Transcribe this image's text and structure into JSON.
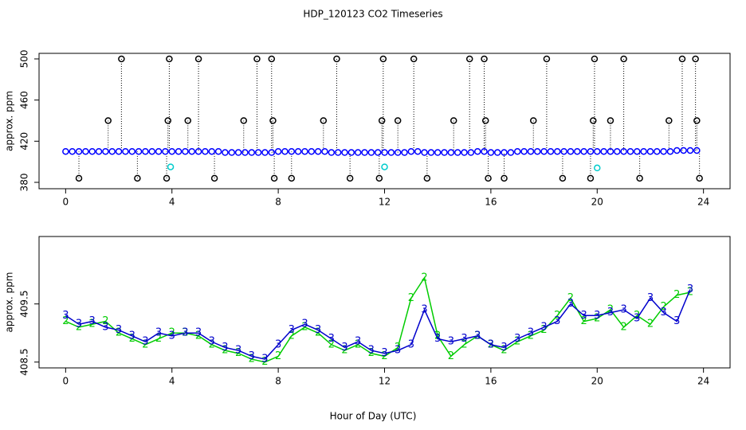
{
  "chart_data": [
    {
      "type": "scatter",
      "title": "HDP_120123  CO2 Timeseries",
      "ylabel": "approx. ppm",
      "xlim": [
        -1,
        25
      ],
      "ylim": [
        373.8,
        505.4
      ],
      "xticks": [
        0,
        4,
        8,
        12,
        16,
        20,
        24
      ],
      "yticks": [
        380,
        420,
        460,
        500
      ],
      "series": [
        {
          "color": "#000000",
          "stems": true,
          "x": [
            0.5,
            1.6,
            2.1,
            2.7,
            3.8,
            3.85,
            3.9,
            4.6,
            5.0,
            5.6,
            6.7,
            7.2,
            7.75,
            7.8,
            7.85,
            8.5,
            9.7,
            10.2,
            10.7,
            11.8,
            11.9,
            11.95,
            12.5,
            13.1,
            13.6,
            14.6,
            15.2,
            15.75,
            15.8,
            15.9,
            16.5,
            17.6,
            18.1,
            18.7,
            19.75,
            19.85,
            19.9,
            20.5,
            21.0,
            21.6,
            22.7,
            23.2,
            23.7,
            23.75,
            23.85
          ],
          "values": [
            384,
            440,
            500,
            384,
            384,
            440,
            500,
            440,
            500,
            384,
            440,
            500,
            500,
            440,
            384,
            384,
            440,
            500,
            384,
            384,
            440,
            500,
            440,
            500,
            384,
            440,
            500,
            500,
            440,
            384,
            384,
            440,
            500,
            384,
            384,
            440,
            500,
            440,
            500,
            384,
            440,
            500,
            500,
            440,
            384
          ]
        },
        {
          "color": "#0000ff",
          "x": [
            0,
            0.25,
            0.5,
            0.75,
            1,
            1.25,
            1.5,
            1.75,
            2,
            2.25,
            2.5,
            2.75,
            3,
            3.25,
            3.5,
            3.75,
            4,
            4.25,
            4.5,
            4.75,
            5,
            5.25,
            5.5,
            5.75,
            6,
            6.25,
            6.5,
            6.75,
            7,
            7.25,
            7.5,
            7.75,
            8,
            8.25,
            8.5,
            8.75,
            9,
            9.25,
            9.5,
            9.75,
            10,
            10.25,
            10.5,
            10.75,
            11,
            11.25,
            11.5,
            11.75,
            12,
            12.25,
            12.5,
            12.75,
            13,
            13.25,
            13.5,
            13.75,
            14,
            14.25,
            14.5,
            14.75,
            15,
            15.25,
            15.5,
            15.75,
            16,
            16.25,
            16.5,
            16.75,
            17,
            17.25,
            17.5,
            17.75,
            18,
            18.25,
            18.5,
            18.75,
            19,
            19.25,
            19.5,
            19.75,
            20,
            20.25,
            20.5,
            20.75,
            21,
            21.25,
            21.5,
            21.75,
            22,
            22.25,
            22.5,
            22.75,
            23,
            23.25,
            23.5,
            23.75
          ],
          "values": [
            410,
            410,
            410,
            410,
            410,
            410,
            410,
            410,
            410,
            410,
            410,
            410,
            410,
            410,
            410,
            410,
            410,
            410,
            410,
            410,
            410,
            410,
            410,
            410,
            409,
            409,
            409,
            409,
            409,
            409,
            409,
            409,
            410,
            410,
            410,
            410,
            410,
            410,
            410,
            410,
            409,
            409,
            409,
            409,
            409,
            409,
            409,
            409,
            409,
            409,
            409,
            409,
            410,
            410,
            409,
            409,
            409,
            409,
            409,
            409,
            409,
            409,
            410,
            410,
            409,
            409,
            409,
            409,
            410,
            410,
            410,
            410,
            410,
            410,
            410,
            410,
            410,
            410,
            410,
            410,
            410,
            410,
            410,
            410,
            410,
            410,
            410,
            410,
            410,
            410,
            410,
            410,
            411,
            411,
            411,
            411
          ]
        },
        {
          "color": "#00cccc",
          "x": [
            3.95,
            12.0,
            20.0
          ],
          "values": [
            395,
            395,
            394
          ]
        }
      ]
    },
    {
      "type": "line",
      "ylabel": "approx. ppm",
      "xlabel": "Hour of Day (UTC)",
      "xlim": [
        -1,
        25
      ],
      "ylim": [
        408.4,
        410.66
      ],
      "xticks": [
        0,
        4,
        8,
        12,
        16,
        20,
        24
      ],
      "yticks": [
        408.5,
        409.5
      ],
      "x": [
        0,
        0.5,
        1,
        1.5,
        2,
        2.5,
        3,
        3.5,
        4,
        4.5,
        5,
        5.5,
        6,
        6.5,
        7,
        7.5,
        8,
        8.5,
        9,
        9.5,
        10,
        10.5,
        11,
        11.5,
        12,
        12.5,
        13,
        13.5,
        14,
        14.5,
        15,
        15.5,
        16,
        16.5,
        17,
        17.5,
        18,
        18.5,
        19,
        19.5,
        20,
        20.5,
        21,
        21.5,
        22,
        22.5,
        23,
        23.5
      ],
      "series": [
        {
          "color": "#00cc00",
          "marker": "2",
          "values": [
            409.2,
            409.1,
            409.15,
            409.2,
            409.0,
            408.9,
            408.8,
            408.9,
            409.0,
            409.0,
            408.95,
            408.8,
            408.7,
            408.65,
            408.55,
            408.5,
            408.6,
            408.95,
            409.1,
            409.0,
            408.8,
            408.7,
            408.8,
            408.65,
            408.6,
            408.75,
            409.6,
            409.95,
            408.95,
            408.6,
            408.8,
            408.95,
            408.8,
            408.7,
            408.85,
            408.95,
            409.05,
            409.3,
            409.6,
            409.2,
            409.25,
            409.4,
            409.1,
            409.3,
            409.15,
            409.45,
            409.65,
            409.7
          ]
        },
        {
          "color": "#0000cc",
          "marker": "3",
          "values": [
            409.3,
            409.15,
            409.2,
            409.1,
            409.05,
            408.95,
            408.85,
            409.0,
            408.95,
            409.0,
            409.0,
            408.85,
            408.75,
            408.7,
            408.6,
            408.55,
            408.8,
            409.05,
            409.15,
            409.05,
            408.9,
            408.75,
            408.85,
            408.7,
            408.65,
            408.7,
            408.8,
            409.4,
            408.9,
            408.85,
            408.9,
            408.95,
            408.8,
            408.75,
            408.9,
            409.0,
            409.1,
            409.2,
            409.5,
            409.3,
            409.3,
            409.35,
            409.4,
            409.25,
            409.6,
            409.35,
            409.2,
            409.75
          ]
        }
      ]
    }
  ]
}
